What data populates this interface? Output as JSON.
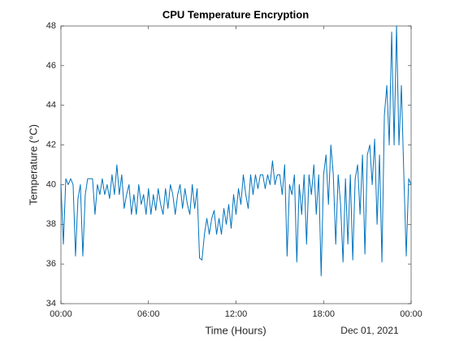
{
  "chart_data": {
    "type": "line",
    "title": "CPU Temperature Encryption",
    "xlabel": "Time (Hours)",
    "ylabel": "Temperature (°C)",
    "x_secondary_label": "Dec 01, 2021",
    "x": [
      0,
      10,
      20,
      30,
      40,
      50,
      60,
      70,
      80,
      90,
      100,
      110,
      120,
      130,
      140,
      150,
      160,
      170,
      180,
      190,
      200,
      210,
      220,
      230,
      240,
      250,
      260,
      270,
      280,
      290,
      300,
      310,
      320,
      330,
      340,
      350,
      360,
      370,
      380,
      390,
      400,
      410,
      420,
      430,
      440,
      450,
      460,
      470,
      480,
      490,
      500,
      510,
      520,
      530,
      540,
      550,
      560,
      570,
      580,
      590,
      600,
      610,
      620,
      630,
      640,
      650,
      660,
      670,
      680,
      690,
      700,
      710,
      720,
      730,
      740,
      750,
      760,
      770,
      780,
      790,
      800,
      810,
      820,
      830,
      840,
      850,
      860,
      870,
      880,
      890,
      900,
      910,
      920,
      930,
      940,
      950,
      960,
      970,
      980,
      990,
      1000,
      1010,
      1020,
      1030,
      1040,
      1050,
      1060,
      1070,
      1080,
      1090,
      1100,
      1110,
      1120,
      1130,
      1140,
      1150,
      1160,
      1170,
      1180,
      1190,
      1200,
      1210,
      1220,
      1230,
      1240,
      1250,
      1260,
      1270,
      1280,
      1290,
      1300,
      1310,
      1320,
      1330,
      1340,
      1350,
      1360,
      1370,
      1380,
      1390,
      1400,
      1410,
      1420,
      1430,
      1440
    ],
    "series": [
      {
        "name": "CPU Temperature",
        "color": "#0072bd",
        "values": [
          40,
          37,
          40.3,
          40,
          40.3,
          40,
          36.4,
          39.3,
          40,
          36.4,
          39.5,
          40.3,
          40.3,
          40.3,
          38.5,
          40,
          39.5,
          40.3,
          39.5,
          40,
          39.3,
          40.5,
          39.5,
          41,
          39.5,
          40.5,
          38.8,
          39.5,
          40,
          38.5,
          39.5,
          38.5,
          40,
          39,
          39.5,
          38.5,
          39.8,
          38.5,
          39.5,
          38.7,
          39.8,
          39,
          38.5,
          39.8,
          38.8,
          40,
          39.5,
          38.5,
          39.5,
          40,
          38.8,
          39.8,
          39,
          38.5,
          40,
          38.8,
          39.8,
          36.3,
          36.2,
          37.5,
          38.3,
          37.5,
          38.3,
          38.7,
          37.5,
          38.3,
          37.5,
          38.8,
          38,
          39,
          37.8,
          39.5,
          38.5,
          39.8,
          39,
          40.5,
          39.5,
          38.8,
          40.5,
          39.5,
          40.5,
          39.8,
          40.5,
          40.5,
          39.8,
          40.5,
          40,
          41.2,
          40,
          40.5,
          40.5,
          39.5,
          41,
          36.4,
          40,
          39.5,
          40.5,
          36.1,
          40,
          38.5,
          40.5,
          37,
          40.5,
          39.5,
          41,
          38.5,
          40.5,
          35.4,
          40.5,
          41.5,
          39,
          42,
          40.5,
          37,
          40.5,
          39,
          36.1,
          40.3,
          37,
          40.5,
          36.2,
          40.3,
          41,
          38.5,
          41.5,
          36.5,
          41.5,
          42,
          40,
          42.3,
          38,
          41.5,
          36.1,
          43.5,
          45,
          42,
          47.7,
          42,
          48,
          42,
          45,
          40.5,
          36.4,
          40.3,
          40
        ]
      }
    ],
    "xlim": [
      0,
      1440
    ],
    "xticks": [
      {
        "value": 0,
        "label": "00:00"
      },
      {
        "value": 360,
        "label": "06:00"
      },
      {
        "value": 720,
        "label": "12:00"
      },
      {
        "value": 1080,
        "label": "18:00"
      },
      {
        "value": 1440,
        "label": "00:00"
      }
    ],
    "ylim": [
      34,
      48
    ],
    "yticks": [
      34,
      36,
      38,
      40,
      42,
      44,
      46,
      48
    ],
    "grid": false
  }
}
